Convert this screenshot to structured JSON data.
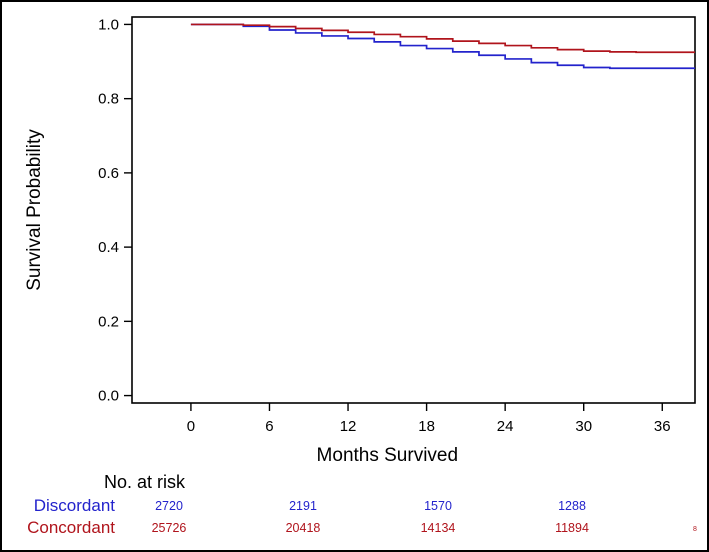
{
  "chart_data": {
    "type": "line",
    "title": "",
    "xlabel": "Months Survived",
    "ylabel": "Survival Probability",
    "xlim": [
      -4.5,
      38.5
    ],
    "ylim": [
      -0.02,
      1.02
    ],
    "x_ticks": [
      0,
      6,
      12,
      18,
      24,
      30,
      36
    ],
    "x_tick_labels": [
      "0",
      "6",
      "12",
      "18",
      "24",
      "30",
      "36"
    ],
    "y_ticks": [
      0.0,
      0.2,
      0.4,
      0.6,
      0.8,
      1.0
    ],
    "y_tick_labels": [
      "0.0",
      "0.2",
      "0.4",
      "0.6",
      "0.8",
      "1.0"
    ],
    "grid": false,
    "series": [
      {
        "name": "Discordant",
        "color": "#2323cc",
        "x": [
          0,
          3,
          4,
          6,
          8,
          10,
          12,
          14,
          16,
          18,
          20,
          22,
          24,
          26,
          28,
          30,
          32,
          34,
          36,
          38.5
        ],
        "y": [
          1.0,
          1.0,
          0.995,
          0.985,
          0.977,
          0.969,
          0.962,
          0.953,
          0.943,
          0.935,
          0.926,
          0.917,
          0.907,
          0.897,
          0.89,
          0.884,
          0.882,
          0.882,
          0.882,
          0.882
        ]
      },
      {
        "name": "Concordant",
        "color": "#b0141c",
        "x": [
          0,
          3,
          4,
          6,
          8,
          10,
          12,
          14,
          16,
          18,
          20,
          22,
          24,
          26,
          28,
          30,
          32,
          34,
          36,
          38.5
        ],
        "y": [
          1.0,
          1.0,
          0.998,
          0.994,
          0.989,
          0.984,
          0.979,
          0.973,
          0.967,
          0.961,
          0.955,
          0.949,
          0.943,
          0.937,
          0.932,
          0.928,
          0.926,
          0.925,
          0.925,
          0.925
        ]
      }
    ],
    "risk_table": {
      "title": "No. at risk",
      "groups": [
        {
          "name": "Discordant",
          "color": "#2323cc",
          "at_months": [
            0,
            12,
            24,
            36
          ],
          "counts": [
            "2720",
            "2191",
            "1570",
            "1288"
          ],
          "trailing_mark": ""
        },
        {
          "name": "Concordant",
          "color": "#b0141c",
          "at_months": [
            0,
            12,
            24,
            36
          ],
          "counts": [
            "25726",
            "20418",
            "14134",
            "11894"
          ],
          "trailing_mark": "8"
        }
      ]
    }
  }
}
